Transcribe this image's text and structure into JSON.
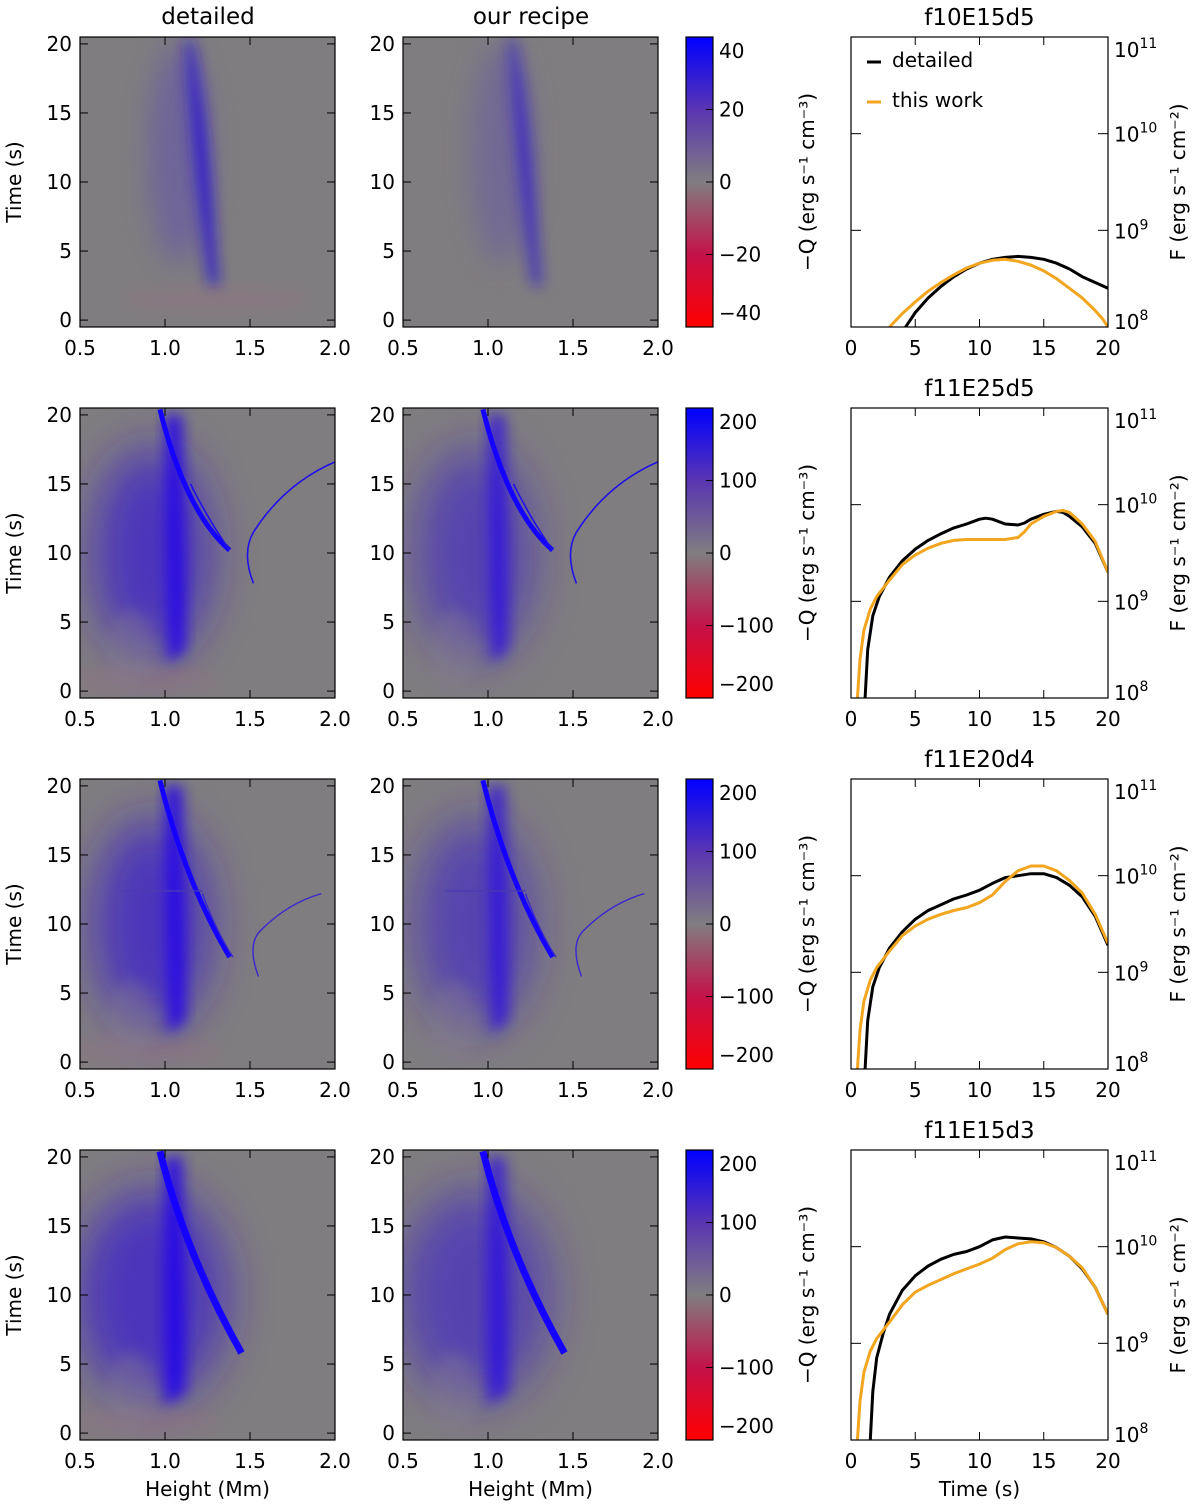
{
  "col_titles": {
    "detailed": "detailed",
    "recipe": "our recipe"
  },
  "heatmap_axes": {
    "xlabel": "Height (Mm)",
    "ylabel": "Time (s)",
    "xlim": [
      0.5,
      2.0
    ],
    "ylim": [
      -0.5,
      20.5
    ],
    "xticks": [
      "0.5",
      "1.0",
      "1.5",
      "2.0"
    ],
    "yticks": [
      "0",
      "5",
      "10",
      "15",
      "20"
    ]
  },
  "colorbar_label": "−Q (erg s⁻¹ cm⁻³)",
  "colors": {
    "positive": "#0000ff",
    "zero": "#807d80",
    "negative": "#ff0000",
    "detailed": "#000000",
    "this_work": "#f2a51e"
  },
  "legend": {
    "detailed": "detailed",
    "this_work": "this work"
  },
  "line_axes": {
    "xlabel": "Time (s)",
    "ylabel": "F (erg s⁻¹ cm⁻²)",
    "xlim": [
      0,
      20
    ],
    "xticks": [
      "0",
      "5",
      "10",
      "15",
      "20"
    ],
    "ylim_log": [
      8,
      11
    ],
    "yticks": [
      {
        "base": "10",
        "exp": "8"
      },
      {
        "base": "10",
        "exp": "9"
      },
      {
        "base": "10",
        "exp": "10"
      },
      {
        "base": "10",
        "exp": "11"
      }
    ]
  },
  "chart_data": [
    {
      "type": "heatmap",
      "row_title": "f10E15d5",
      "colorbar_ticks": [
        "40",
        "20",
        "0",
        "−20",
        "−40"
      ],
      "zlim": [
        -40,
        40
      ],
      "line_series": [
        {
          "name": "detailed",
          "x": [
            4,
            5,
            6,
            7,
            8,
            9,
            10,
            11,
            12,
            13,
            14,
            15,
            16,
            17,
            18,
            19,
            20
          ],
          "y": [
            7.95,
            8.15,
            8.3,
            8.42,
            8.52,
            8.6,
            8.66,
            8.7,
            8.72,
            8.73,
            8.72,
            8.7,
            8.66,
            8.6,
            8.52,
            8.46,
            8.4
          ]
        },
        {
          "name": "this work",
          "x": [
            3,
            4,
            5,
            6,
            7,
            8,
            9,
            10,
            11,
            12,
            13,
            14,
            15,
            16,
            17,
            18,
            19,
            19.6,
            20
          ],
          "y": [
            8.0,
            8.14,
            8.26,
            8.37,
            8.46,
            8.54,
            8.61,
            8.66,
            8.69,
            8.7,
            8.68,
            8.64,
            8.58,
            8.5,
            8.4,
            8.3,
            8.17,
            8.08,
            8.0
          ]
        }
      ]
    },
    {
      "type": "heatmap",
      "row_title": "f11E25d5",
      "colorbar_ticks": [
        "200",
        "100",
        "0",
        "−100",
        "−200"
      ],
      "zlim": [
        -200,
        200
      ],
      "line_series": [
        {
          "name": "detailed",
          "x": [
            1.1,
            1.3,
            1.7,
            2.2,
            3,
            4,
            5,
            6,
            7,
            8,
            9,
            10,
            10.5,
            11,
            12,
            13,
            13.5,
            14,
            15,
            16,
            16.5,
            17,
            18,
            19,
            20
          ],
          "y": [
            8.0,
            8.5,
            8.85,
            9.05,
            9.25,
            9.42,
            9.54,
            9.63,
            9.7,
            9.76,
            9.8,
            9.85,
            9.86,
            9.85,
            9.8,
            9.79,
            9.81,
            9.85,
            9.9,
            9.93,
            9.92,
            9.88,
            9.77,
            9.6,
            9.3
          ]
        },
        {
          "name": "this work",
          "x": [
            0.5,
            0.7,
            1.0,
            1.5,
            2,
            3,
            4,
            5,
            6,
            7,
            8,
            9,
            10,
            11,
            12,
            13,
            13.5,
            14,
            15,
            16,
            16.5,
            17,
            18,
            19,
            20
          ],
          "y": [
            8.0,
            8.4,
            8.7,
            8.92,
            9.05,
            9.22,
            9.38,
            9.48,
            9.55,
            9.6,
            9.63,
            9.64,
            9.64,
            9.64,
            9.64,
            9.66,
            9.72,
            9.8,
            9.88,
            9.93,
            9.94,
            9.92,
            9.8,
            9.62,
            9.3
          ]
        }
      ]
    },
    {
      "type": "heatmap",
      "row_title": "f11E20d4",
      "colorbar_ticks": [
        "200",
        "100",
        "0",
        "−100",
        "−200"
      ],
      "zlim": [
        -200,
        200
      ],
      "line_series": [
        {
          "name": "detailed",
          "x": [
            1.1,
            1.3,
            1.7,
            2.2,
            3,
            4,
            5,
            6,
            7,
            8,
            9,
            10,
            11,
            12,
            13,
            14,
            15,
            16,
            17,
            18,
            19,
            20
          ],
          "y": [
            8.0,
            8.5,
            8.85,
            9.05,
            9.25,
            9.42,
            9.55,
            9.64,
            9.7,
            9.76,
            9.8,
            9.85,
            9.92,
            9.98,
            10.0,
            10.02,
            10.02,
            9.98,
            9.9,
            9.78,
            9.58,
            9.28
          ]
        },
        {
          "name": "this work",
          "x": [
            0.5,
            0.7,
            1.0,
            1.5,
            2,
            3,
            4,
            5,
            6,
            7,
            8,
            9,
            10,
            11,
            12,
            13,
            14,
            15,
            16,
            17,
            18,
            19,
            20
          ],
          "y": [
            8.0,
            8.4,
            8.7,
            8.92,
            9.05,
            9.22,
            9.38,
            9.48,
            9.55,
            9.6,
            9.64,
            9.67,
            9.72,
            9.8,
            9.94,
            10.05,
            10.1,
            10.1,
            10.05,
            9.95,
            9.82,
            9.6,
            9.3
          ]
        }
      ]
    },
    {
      "type": "heatmap",
      "row_title": "f11E15d3",
      "colorbar_ticks": [
        "200",
        "100",
        "0",
        "−100",
        "−200"
      ],
      "zlim": [
        -200,
        200
      ],
      "line_series": [
        {
          "name": "detailed",
          "x": [
            1.5,
            1.7,
            2.0,
            2.5,
            3,
            4,
            5,
            6,
            7,
            8,
            9,
            10,
            11,
            12,
            13,
            14,
            15,
            16,
            17,
            18,
            19,
            20
          ],
          "y": [
            8.0,
            8.5,
            8.85,
            9.1,
            9.3,
            9.55,
            9.7,
            9.8,
            9.87,
            9.92,
            9.95,
            10.0,
            10.07,
            10.1,
            10.09,
            10.08,
            10.05,
            9.99,
            9.9,
            9.77,
            9.58,
            9.3
          ]
        },
        {
          "name": "this work",
          "x": [
            0.5,
            0.7,
            1.0,
            1.5,
            2,
            3,
            4,
            5,
            6,
            7,
            8,
            9,
            10,
            11,
            12,
            13,
            14,
            15,
            16,
            17,
            18,
            19,
            20
          ],
          "y": [
            8.0,
            8.4,
            8.7,
            8.92,
            9.05,
            9.22,
            9.4,
            9.53,
            9.6,
            9.66,
            9.72,
            9.77,
            9.82,
            9.88,
            9.97,
            10.03,
            10.05,
            10.04,
            9.99,
            9.9,
            9.78,
            9.58,
            9.3
          ]
        }
      ]
    }
  ]
}
